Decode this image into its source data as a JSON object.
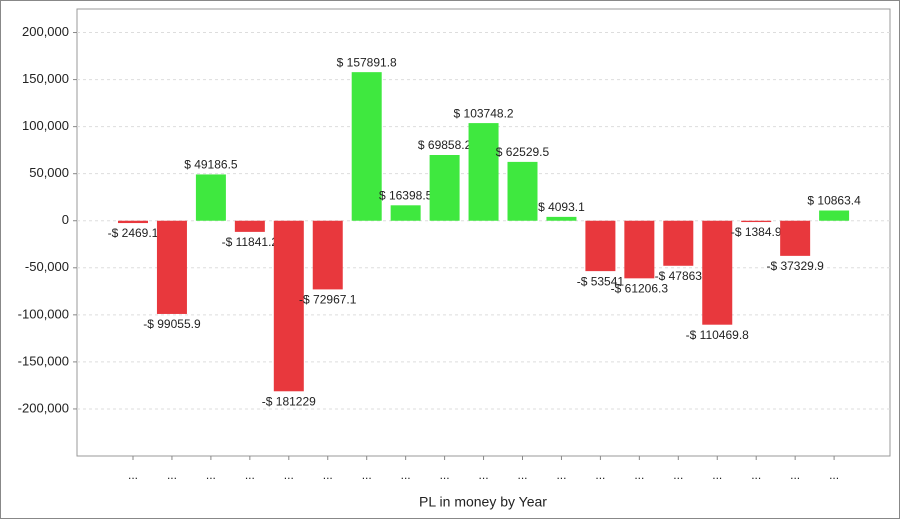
{
  "chart_data": {
    "type": "bar",
    "x_label": "PL in money by Year",
    "categories": [
      "...",
      "...",
      "...",
      "...",
      "...",
      "...",
      "...",
      "...",
      "...",
      "...",
      "...",
      "...",
      "...",
      "...",
      "...",
      "...",
      "...",
      "...",
      "..."
    ],
    "values": [
      -2469.1,
      -99055.9,
      49186.5,
      -11841.2,
      -181229,
      -72967.1,
      157891.8,
      16398.5,
      69858.2,
      103748.2,
      62529.5,
      4093.1,
      -53541,
      -61206.3,
      -47863,
      -110469.8,
      -1384.9,
      -37329.9,
      10863.4
    ],
    "value_labels": [
      "-$ 2469.1",
      "-$ 99055.9",
      "$ 49186.5",
      "-$ 11841.2",
      "-$ 181229",
      "-$ 72967.1",
      "$ 157891.8",
      "$ 16398.5",
      "$ 69858.2",
      "$ 103748.2",
      "$ 62529.5",
      "$ 4093.1",
      "-$ 53541",
      "-$ 61206.3",
      "-$ 47863",
      "-$ 110469.8",
      "-$ 1384.9",
      "-$ 37329.9",
      "$ 10863.4"
    ],
    "colors": [
      "#e8383d",
      "#e8383d",
      "#3fe83f",
      "#e8383d",
      "#e8383d",
      "#e8383d",
      "#3fe83f",
      "#3fe83f",
      "#3fe83f",
      "#3fe83f",
      "#3fe83f",
      "#3fe83f",
      "#e8383d",
      "#e8383d",
      "#e8383d",
      "#e8383d",
      "#e8383d",
      "#e8383d",
      "#3fe83f"
    ],
    "ylim": [
      -250000,
      225000
    ],
    "yticks": [
      {
        "value": -200000,
        "label": "-200,000"
      },
      {
        "value": -150000,
        "label": "-150,000"
      },
      {
        "value": -100000,
        "label": "-100,000"
      },
      {
        "value": -50000,
        "label": "-50,000"
      },
      0,
      {
        "value": 50000,
        "label": "50,000"
      },
      {
        "value": 100000,
        "label": "100,000"
      },
      {
        "value": 150000,
        "label": "150,000"
      },
      {
        "value": 200000,
        "label": "200,000"
      }
    ],
    "grid": true
  }
}
